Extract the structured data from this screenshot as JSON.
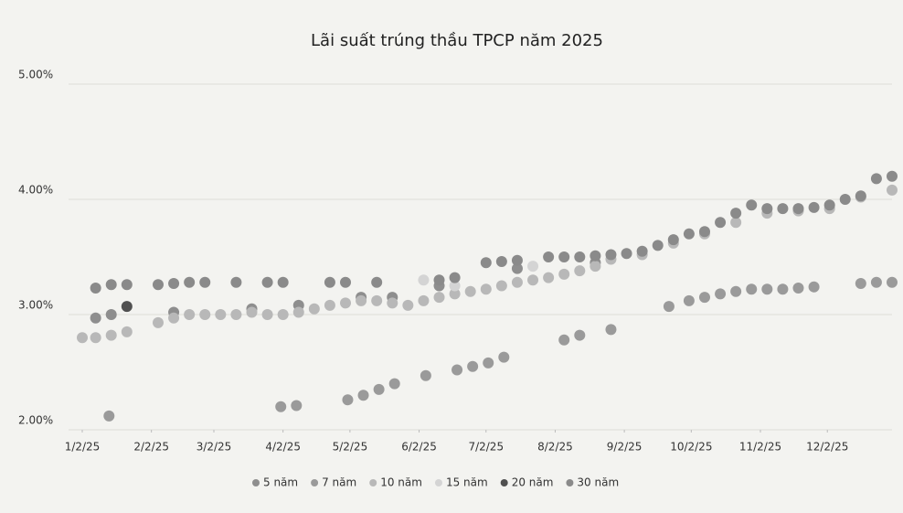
{
  "chart_data": {
    "type": "scatter",
    "title": "Lãi suất trúng thầu TPCP năm 2025",
    "xlim": [
      "2025-01-02",
      "2025-12-31"
    ],
    "xticks": [
      {
        "value": "2025-01-02",
        "label": "1/2/25"
      },
      {
        "value": "2025-02-02",
        "label": "2/2/25"
      },
      {
        "value": "2025-03-02",
        "label": "3/2/25"
      },
      {
        "value": "2025-04-02",
        "label": "4/2/25"
      },
      {
        "value": "2025-05-02",
        "label": "5/2/25"
      },
      {
        "value": "2025-06-02",
        "label": "6/2/25"
      },
      {
        "value": "2025-07-02",
        "label": "7/2/25"
      },
      {
        "value": "2025-08-02",
        "label": "8/2/25"
      },
      {
        "value": "2025-09-02",
        "label": "9/2/25"
      },
      {
        "value": "2025-10-02",
        "label": "10/2/25"
      },
      {
        "value": "2025-11-02",
        "label": "11/2/25"
      },
      {
        "value": "2025-12-02",
        "label": "12/2/25"
      }
    ],
    "ylim": [
      2,
      5
    ],
    "yticks": [
      {
        "value": 2,
        "label": "2.00%"
      },
      {
        "value": 3,
        "label": "3.00%"
      },
      {
        "value": 4,
        "label": "4.00%"
      },
      {
        "value": 5,
        "label": "5.00%"
      }
    ],
    "grid": true,
    "legend": "bottom",
    "series": [
      {
        "name": "5 năm",
        "color": "#8e8e8e",
        "x": [
          "2025-01-08",
          "2025-01-15",
          "2025-02-12",
          "2025-03-19",
          "2025-04-09",
          "2025-05-07",
          "2025-05-21",
          "2025-06-11",
          "2025-07-16",
          "2025-08-20"
        ],
        "values": [
          2.97,
          3.0,
          3.02,
          3.05,
          3.08,
          3.15,
          3.15,
          3.25,
          3.4,
          3.45
        ]
      },
      {
        "name": "7 năm",
        "color": "#9a9a9a",
        "x": [
          "2025-01-14",
          "2025-04-01",
          "2025-04-08",
          "2025-05-01",
          "2025-05-08",
          "2025-05-15",
          "2025-05-22",
          "2025-06-05",
          "2025-06-19",
          "2025-06-26",
          "2025-07-03",
          "2025-07-10",
          "2025-08-06",
          "2025-08-13",
          "2025-08-27",
          "2025-09-22",
          "2025-10-01",
          "2025-10-08",
          "2025-10-15",
          "2025-10-22",
          "2025-10-29",
          "2025-11-05",
          "2025-11-12",
          "2025-11-19",
          "2025-11-26",
          "2025-12-17",
          "2025-12-24",
          "2025-12-31"
        ],
        "values": [
          2.12,
          2.2,
          2.21,
          2.26,
          2.3,
          2.35,
          2.4,
          2.47,
          2.52,
          2.55,
          2.58,
          2.63,
          2.78,
          2.82,
          2.87,
          3.07,
          3.12,
          3.15,
          3.18,
          3.2,
          3.22,
          3.22,
          3.22,
          3.23,
          3.24,
          3.27,
          3.28,
          3.28
        ]
      },
      {
        "name": "10 năm",
        "color": "#b8b8b8",
        "x": [
          "2025-01-02",
          "2025-01-08",
          "2025-01-15",
          "2025-01-22",
          "2025-02-05",
          "2025-02-12",
          "2025-02-19",
          "2025-02-26",
          "2025-03-05",
          "2025-03-12",
          "2025-03-19",
          "2025-03-26",
          "2025-04-02",
          "2025-04-09",
          "2025-04-16",
          "2025-04-23",
          "2025-04-30",
          "2025-05-07",
          "2025-05-14",
          "2025-05-21",
          "2025-05-28",
          "2025-06-04",
          "2025-06-11",
          "2025-06-18",
          "2025-06-25",
          "2025-07-02",
          "2025-07-09",
          "2025-07-16",
          "2025-07-23",
          "2025-07-30",
          "2025-08-06",
          "2025-08-13",
          "2025-08-20",
          "2025-08-27",
          "2025-09-10",
          "2025-09-24",
          "2025-10-08",
          "2025-10-22",
          "2025-11-05",
          "2025-11-19",
          "2025-12-03",
          "2025-12-17",
          "2025-12-31"
        ],
        "values": [
          2.8,
          2.8,
          2.82,
          2.85,
          2.93,
          2.97,
          3.0,
          3.0,
          3.0,
          3.0,
          3.02,
          3.0,
          3.0,
          3.02,
          3.05,
          3.08,
          3.1,
          3.12,
          3.12,
          3.1,
          3.08,
          3.12,
          3.15,
          3.18,
          3.2,
          3.22,
          3.25,
          3.28,
          3.3,
          3.32,
          3.35,
          3.38,
          3.42,
          3.48,
          3.52,
          3.62,
          3.7,
          3.8,
          3.88,
          3.9,
          3.92,
          4.02,
          4.08
        ]
      },
      {
        "name": "15 năm",
        "color": "#d4d4d4",
        "x": [
          "2025-06-04",
          "2025-06-18",
          "2025-07-23"
        ],
        "values": [
          3.3,
          3.25,
          3.42
        ]
      },
      {
        "name": "20 năm",
        "color": "#505050",
        "x": [
          "2025-01-22"
        ],
        "values": [
          3.07
        ]
      },
      {
        "name": "30 năm",
        "color": "#8a8a8a",
        "x": [
          "2025-01-08",
          "2025-01-15",
          "2025-01-22",
          "2025-02-05",
          "2025-02-12",
          "2025-02-19",
          "2025-02-26",
          "2025-03-12",
          "2025-03-26",
          "2025-04-02",
          "2025-04-23",
          "2025-04-30",
          "2025-05-14",
          "2025-06-11",
          "2025-06-18",
          "2025-07-02",
          "2025-07-09",
          "2025-07-16",
          "2025-07-30",
          "2025-08-06",
          "2025-08-13",
          "2025-08-20",
          "2025-08-27",
          "2025-09-03",
          "2025-09-10",
          "2025-09-17",
          "2025-09-24",
          "2025-10-01",
          "2025-10-08",
          "2025-10-15",
          "2025-10-22",
          "2025-10-29",
          "2025-11-05",
          "2025-11-12",
          "2025-11-19",
          "2025-11-26",
          "2025-12-03",
          "2025-12-10",
          "2025-12-17",
          "2025-12-24",
          "2025-12-31"
        ],
        "values": [
          3.23,
          3.26,
          3.26,
          3.26,
          3.27,
          3.28,
          3.28,
          3.28,
          3.28,
          3.28,
          3.28,
          3.28,
          3.28,
          3.3,
          3.32,
          3.45,
          3.46,
          3.47,
          3.5,
          3.5,
          3.5,
          3.51,
          3.52,
          3.53,
          3.55,
          3.6,
          3.65,
          3.7,
          3.72,
          3.8,
          3.88,
          3.95,
          3.92,
          3.92,
          3.92,
          3.93,
          3.95,
          4.0,
          4.03,
          4.18,
          4.2
        ]
      }
    ]
  }
}
